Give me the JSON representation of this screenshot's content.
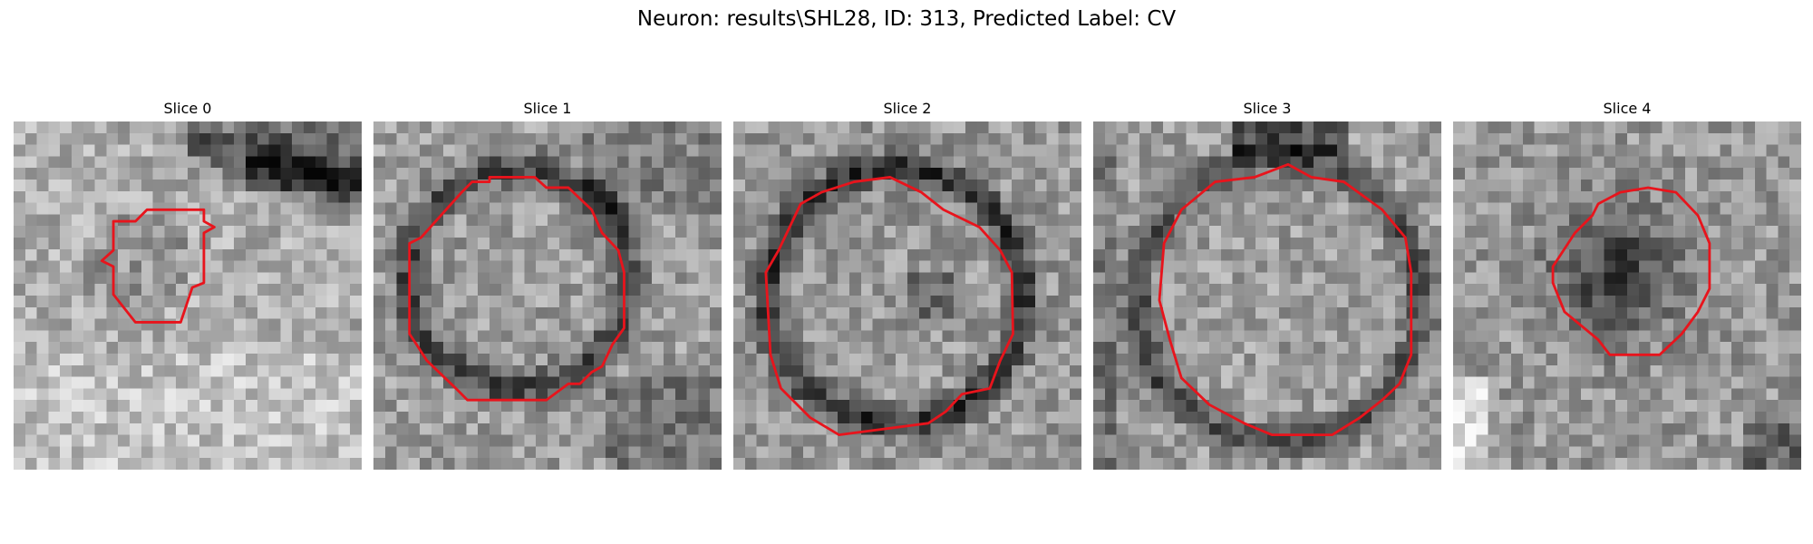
{
  "figure": {
    "title": "Neuron: results\\SHL28, ID: 313, Predicted Label: CV"
  },
  "outline_color": "#e8141c",
  "panels": [
    {
      "title": "Slice 0"
    },
    {
      "title": "Slice 1"
    },
    {
      "title": "Slice 2"
    },
    {
      "title": "Slice 3"
    },
    {
      "title": "Slice 4"
    }
  ]
}
